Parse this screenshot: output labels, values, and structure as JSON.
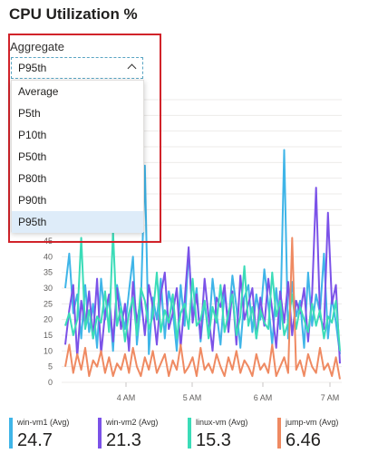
{
  "title": "CPU Utilization %",
  "aggregate": {
    "label": "Aggregate",
    "selected": "P95th",
    "options": [
      "Average",
      "P5th",
      "P10th",
      "P50th",
      "P80th",
      "P90th",
      "P95th"
    ]
  },
  "chart_data": {
    "type": "line",
    "title": "CPU Utilization %",
    "xlabel": "",
    "ylabel": "",
    "x_ticks": [
      "4 AM",
      "5 AM",
      "6 AM",
      "7 AM"
    ],
    "y_ticks": [
      0,
      5,
      10,
      15,
      20,
      25,
      30,
      35,
      40,
      45
    ],
    "ylim": [
      0,
      90
    ],
    "grid": true,
    "series": [
      {
        "name": "win-vm1 (Avg)",
        "color": "#3fb5e8",
        "values": [
          30,
          41,
          22,
          28,
          14,
          31,
          16,
          25,
          11,
          33,
          20,
          27,
          10,
          31,
          24,
          17,
          29,
          40,
          12,
          25,
          69,
          9,
          27,
          20,
          33,
          14,
          29,
          23,
          10,
          31,
          18,
          42,
          21,
          30,
          13,
          26,
          15,
          33,
          22,
          12,
          29,
          19,
          34,
          24,
          11,
          27,
          31,
          16,
          28,
          20,
          36,
          25,
          12,
          30,
          17,
          74,
          14,
          32,
          21,
          26,
          11,
          35,
          18,
          28,
          22,
          41,
          14,
          27,
          19,
          9
        ]
      },
      {
        "name": "win-vm2 (Avg)",
        "color": "#7b52e8",
        "values": [
          12,
          23,
          31,
          8,
          26,
          18,
          29,
          14,
          33,
          9,
          22,
          28,
          13,
          30,
          17,
          25,
          10,
          32,
          19,
          27,
          15,
          31,
          24,
          12,
          28,
          35,
          17,
          22,
          30,
          11,
          26,
          43,
          19,
          28,
          14,
          33,
          21,
          10,
          27,
          24,
          31,
          16,
          29,
          12,
          34,
          20,
          25,
          30,
          14,
          27,
          18,
          33,
          23,
          11,
          29,
          19,
          32,
          15,
          26,
          22,
          30,
          13,
          28,
          62,
          21,
          17,
          54,
          25,
          31,
          6
        ]
      },
      {
        "name": "linux-vm (Avg)",
        "color": "#3bdcb8",
        "values": [
          18,
          22,
          15,
          20,
          46,
          17,
          23,
          14,
          21,
          19,
          29,
          16,
          48,
          18,
          24,
          13,
          22,
          27,
          15,
          30,
          26,
          17,
          21,
          35,
          16,
          23,
          19,
          28,
          14,
          22,
          25,
          17,
          33,
          18,
          20,
          26,
          14,
          24,
          19,
          31,
          16,
          22,
          28,
          15,
          21,
          37,
          18,
          24,
          14,
          23,
          19,
          17,
          35,
          21,
          26,
          15,
          19,
          28,
          17,
          24,
          20,
          16,
          25,
          18,
          23,
          14,
          21,
          19,
          26,
          10
        ]
      },
      {
        "name": "jump-vm (Avg)",
        "color": "#ef8a62",
        "values": [
          5,
          12,
          3,
          9,
          4,
          11,
          2,
          7,
          5,
          10,
          3,
          8,
          2,
          6,
          4,
          9,
          3,
          11,
          5,
          2,
          8,
          4,
          10,
          3,
          6,
          9,
          2,
          7,
          4,
          12,
          3,
          5,
          8,
          2,
          11,
          4,
          6,
          3,
          9,
          5,
          2,
          8,
          4,
          10,
          3,
          7,
          5,
          2,
          9,
          4,
          6,
          3,
          12,
          2,
          5,
          8,
          3,
          46,
          4,
          7,
          2,
          9,
          5,
          3,
          11,
          4,
          6,
          2,
          8,
          1
        ]
      }
    ]
  },
  "legend": [
    {
      "name": "win-vm1 (Avg)",
      "value": "24.7",
      "color": "#3fb5e8"
    },
    {
      "name": "win-vm2 (Avg)",
      "value": "21.3",
      "color": "#7b52e8"
    },
    {
      "name": "linux-vm (Avg)",
      "value": "15.3",
      "color": "#3bdcb8"
    },
    {
      "name": "jump-vm (Avg)",
      "value": "6.46",
      "color": "#ef8a62"
    }
  ]
}
